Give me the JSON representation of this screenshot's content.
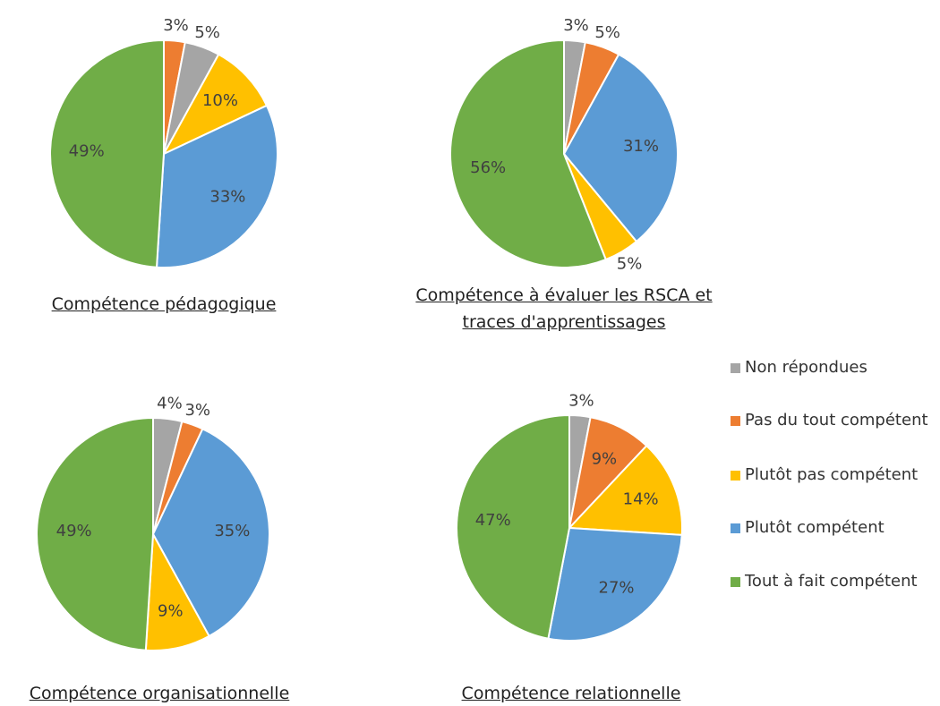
{
  "chart_data": [
    {
      "type": "pie",
      "title": "Compétence pédagogique",
      "values": [
        3,
        5,
        10,
        33,
        49
      ],
      "value_labels": [
        "3%",
        "5%",
        "10%",
        "33%",
        "49%"
      ],
      "colors": [
        "#ed7d31",
        "#a5a5a5",
        "#ffc000",
        "#5b9bd5",
        "#70ad47"
      ]
    },
    {
      "type": "pie",
      "title": "Compétence à évaluer les RSCA et traces d'apprentissages",
      "values": [
        3,
        5,
        31,
        5,
        56
      ],
      "value_labels": [
        "3%",
        "5%",
        "31%",
        "5%",
        "56%"
      ],
      "colors": [
        "#a5a5a5",
        "#ed7d31",
        "#5b9bd5",
        "#ffc000",
        "#70ad47"
      ]
    },
    {
      "type": "pie",
      "title": "Compétence organisationnelle",
      "values": [
        4,
        3,
        35,
        9,
        49
      ],
      "value_labels": [
        "4%",
        "3%",
        "35%",
        "9%",
        "49%"
      ],
      "colors": [
        "#a5a5a5",
        "#ed7d31",
        "#5b9bd5",
        "#ffc000",
        "#70ad47"
      ]
    },
    {
      "type": "pie",
      "title": "Compétence relationnelle",
      "values": [
        3,
        9,
        14,
        27,
        47
      ],
      "value_labels": [
        "3%",
        "9%",
        "14%",
        "27%",
        "47%"
      ],
      "colors": [
        "#a5a5a5",
        "#ed7d31",
        "#ffc000",
        "#5b9bd5",
        "#70ad47"
      ]
    }
  ],
  "legend": [
    {
      "name": "Non répondues",
      "color": "#a5a5a5"
    },
    {
      "name": "Pas du tout compétent",
      "color": "#ed7d31"
    },
    {
      "name": "Plutôt pas compétent",
      "color": "#ffc000"
    },
    {
      "name": "Plutôt compétent",
      "color": "#5b9bd5"
    },
    {
      "name": "Tout à fait compétent",
      "color": "#70ad47"
    }
  ]
}
